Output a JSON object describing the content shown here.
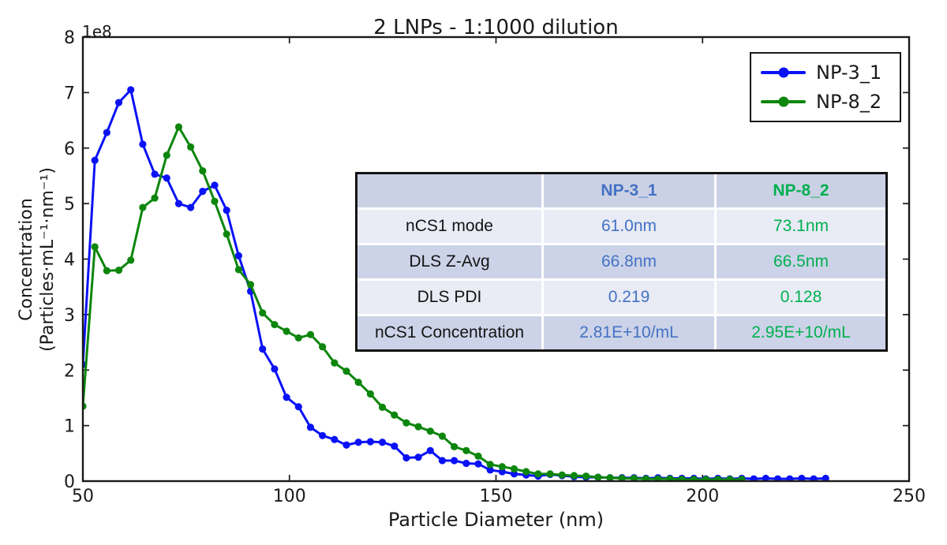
{
  "chart_data": {
    "type": "line",
    "title": "2 LNPs - 1:1000 dilution",
    "xlabel": "Particle Diameter (nm)",
    "ylabel": "Concentration (Particles·mL⁻¹·nm⁻¹)",
    "ylabel_lines": [
      "Concentration",
      "(Particles·mL⁻¹·nm⁻¹)"
    ],
    "y_offset_label": "1e8",
    "y_unit_multiplier": 100000000.0,
    "xlim": [
      50,
      250
    ],
    "ylim": [
      0,
      8
    ],
    "xticks": [
      50,
      100,
      150,
      200,
      250
    ],
    "yticks": [
      0,
      1,
      2,
      3,
      4,
      5,
      6,
      7,
      8
    ],
    "grid": false,
    "legend_position": "upper right",
    "series": [
      {
        "name": "NP-3_1",
        "color": "#0a12f5",
        "marker": "circle",
        "x": [
          50,
          52.9,
          55.8,
          58.7,
          61.6,
          64.5,
          67.4,
          70.3,
          73.2,
          76.1,
          79,
          81.9,
          84.8,
          87.7,
          90.6,
          93.5,
          96.4,
          99.3,
          102.2,
          105.1,
          108,
          110.9,
          113.8,
          116.7,
          119.6,
          122.5,
          125.4,
          128.3,
          131.2,
          134.1,
          137,
          139.9,
          142.8,
          145.7,
          148.6,
          151.5,
          154.4,
          157.3,
          160.2,
          163.1,
          166,
          168.9,
          171.8,
          174.7,
          177.6,
          180.5,
          183.4,
          186.3,
          189.2,
          192.1,
          195,
          197.9,
          200.8,
          203.7,
          206.6,
          209.5,
          212.4,
          215.3,
          218.2,
          221.1,
          224,
          226.9,
          229.8
        ],
        "values": [
          2.1,
          5.78,
          6.28,
          6.82,
          7.05,
          6.07,
          5.53,
          5.46,
          5.0,
          4.93,
          5.22,
          5.33,
          4.88,
          4.06,
          3.42,
          2.38,
          2.02,
          1.51,
          1.34,
          0.97,
          0.82,
          0.75,
          0.65,
          0.7,
          0.71,
          0.7,
          0.63,
          0.42,
          0.43,
          0.55,
          0.37,
          0.37,
          0.32,
          0.31,
          0.2,
          0.17,
          0.13,
          0.11,
          0.09,
          0.12,
          0.1,
          0.08,
          0.07,
          0.07,
          0.06,
          0.06,
          0.06,
          0.05,
          0.06,
          0.05,
          0.05,
          0.05,
          0.04,
          0.05,
          0.04,
          0.05,
          0.04,
          0.05,
          0.04,
          0.04,
          0.05,
          0.04,
          0.05
        ]
      },
      {
        "name": "NP-8_2",
        "color": "#0d860d",
        "marker": "circle",
        "x": [
          50,
          52.9,
          55.8,
          58.7,
          61.6,
          64.5,
          67.4,
          70.3,
          73.2,
          76.1,
          79,
          81.9,
          84.8,
          87.7,
          90.6,
          93.5,
          96.4,
          99.3,
          102.2,
          105.1,
          108,
          110.9,
          113.8,
          116.7,
          119.6,
          122.5,
          125.4,
          128.3,
          131.2,
          134.1,
          137,
          139.9,
          142.8,
          145.7,
          148.6,
          151.5,
          154.4,
          157.3,
          160.2,
          163.1,
          166,
          168.9,
          171.8,
          174.7,
          177.6,
          180.5,
          183.4,
          186.3,
          189.2,
          192.1,
          195,
          197.9,
          200.8,
          203.7,
          206.6,
          209.5
        ],
        "values": [
          1.35,
          4.22,
          3.79,
          3.8,
          3.98,
          4.93,
          5.1,
          5.87,
          6.38,
          6.02,
          5.59,
          5.04,
          4.45,
          3.81,
          3.54,
          3.03,
          2.82,
          2.7,
          2.58,
          2.64,
          2.42,
          2.13,
          1.98,
          1.78,
          1.57,
          1.33,
          1.19,
          1.05,
          0.98,
          0.9,
          0.81,
          0.62,
          0.55,
          0.45,
          0.3,
          0.26,
          0.22,
          0.17,
          0.13,
          0.13,
          0.11,
          0.1,
          0.09,
          0.07,
          0.06,
          0.05,
          0.05,
          0.04,
          0.04,
          0.04,
          0.03,
          0.03,
          0.03,
          0.03,
          0.03,
          0.03
        ]
      }
    ]
  },
  "table": {
    "header": [
      "",
      "NP-3_1",
      "NP-8_2"
    ],
    "header_colors": {
      "np31": "#4472c4",
      "np82": "#00b050"
    },
    "rows": [
      {
        "label": "nCS1 mode",
        "np31": "61.0nm",
        "np82": "73.1nm"
      },
      {
        "label": "DLS Z-Avg",
        "np31": "66.8nm",
        "np82": "66.5nm"
      },
      {
        "label": "DLS PDI",
        "np31": "0.219",
        "np82": "0.128"
      },
      {
        "label": "nCS1 Concentration",
        "np31": "2.81E+10/mL",
        "np82": "2.95E+10/mL"
      }
    ]
  }
}
